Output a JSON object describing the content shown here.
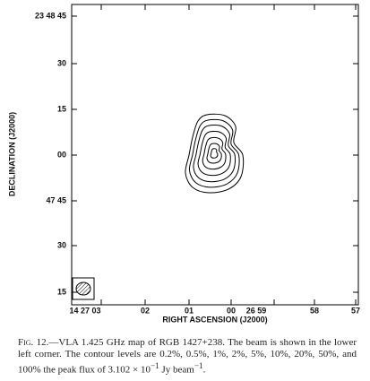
{
  "figure": {
    "y_axis_label": "DECLINATION (J2000)",
    "x_axis_label": "RIGHT ASCENSION (J2000)",
    "yticks": [
      "23 48 45",
      "30",
      "15",
      "00",
      "47 45",
      "30",
      "15"
    ],
    "xticks": [
      "14 27 03",
      "02",
      "01",
      "00",
      "26 59",
      "58",
      "57"
    ]
  },
  "caption": {
    "label": "Fig. 12.",
    "text": "—VLA 1.425 GHz map of RGB 1427+238. The beam is shown in the lower left corner. The contour levels are 0.2%, 0.5%, 1%, 2%, 5%, 10%, 20%, 50%, and 100% the peak flux of 3.102 × 10",
    "sup1": "−1",
    "mid": " Jy beam",
    "sup2": "−1",
    "end": "."
  }
}
